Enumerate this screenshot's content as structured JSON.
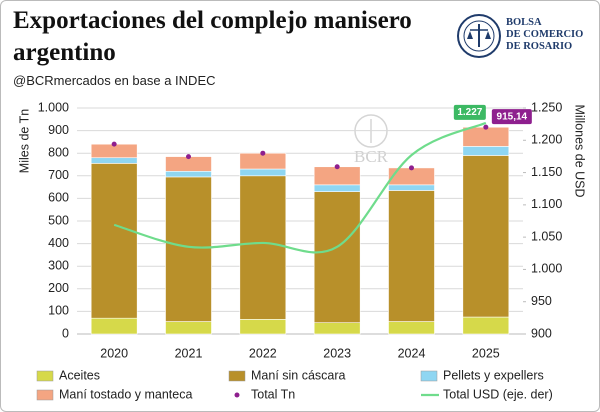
{
  "header": {
    "title": "Exportaciones del complejo manisero argentino",
    "subtitle": "@BCRmercados en base a INDEC",
    "logo": [
      "BOLSA",
      "DE COMERCIO",
      "DE ROSARIO"
    ],
    "watermark": "BCR"
  },
  "chart_data": {
    "type": "stacked-bar-line",
    "y_label": "Miles de Tn",
    "y2_label": "Millones de USD",
    "categories": [
      "2020",
      "2021",
      "2022",
      "2023",
      "2024",
      "2025"
    ],
    "ylim": [
      0,
      1000
    ],
    "yticks": [
      0,
      100,
      200,
      300,
      400,
      500,
      600,
      700,
      800,
      900,
      {
        "value": 1000,
        "label": "1.000"
      }
    ],
    "y2lim": [
      900,
      1250
    ],
    "y2ticks": [
      900,
      950,
      {
        "value": 1000,
        "label": "1.000"
      },
      {
        "value": 1050,
        "label": "1.050"
      },
      {
        "value": 1100,
        "label": "1.100"
      },
      {
        "value": 1150,
        "label": "1.150"
      },
      {
        "value": 1200,
        "label": "1.200"
      },
      {
        "value": 1250,
        "label": "1.250"
      }
    ],
    "grid": true,
    "series": [
      {
        "name": "Aceites",
        "type": "bar",
        "color": "#d6d94a",
        "values": [
          70,
          55,
          65,
          50,
          55,
          75
        ]
      },
      {
        "name": "Maní sin cáscara",
        "type": "bar",
        "color": "#b8902a",
        "values": [
          685,
          640,
          635,
          580,
          580,
          715
        ]
      },
      {
        "name": "Pellets y expellers",
        "type": "bar",
        "color": "#8fd6f2",
        "values": [
          25,
          25,
          30,
          30,
          25,
          40
        ]
      },
      {
        "name": "Maní tostado y manteca",
        "type": "bar",
        "color": "#f4a582",
        "values": [
          60,
          65,
          70,
          80,
          75,
          85
        ]
      },
      {
        "name": "Total Tn",
        "type": "dot",
        "color": "#8e1f8e",
        "values": [
          840,
          785,
          800,
          740,
          735,
          915.14
        ],
        "value_labels": [
          null,
          null,
          null,
          null,
          null,
          "915,14"
        ]
      },
      {
        "name": "Total USD (eje. der)",
        "type": "line",
        "axis": "y2",
        "color": "#6fdc8c",
        "values": [
          1069,
          1035,
          1041,
          1035,
          1177,
          1227
        ],
        "value_labels": [
          null,
          null,
          null,
          null,
          null,
          "1.227"
        ]
      }
    ]
  }
}
